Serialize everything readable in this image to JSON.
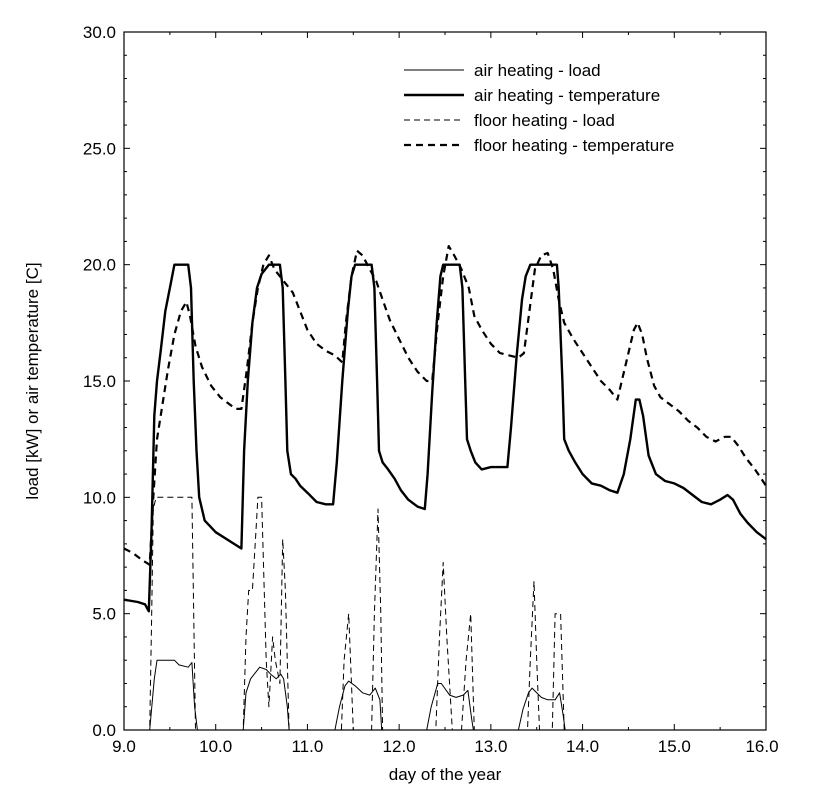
{
  "chart_data": {
    "type": "line",
    "title": "",
    "xlabel": "day of the year",
    "ylabel": "load [kW] or air temperature [C]",
    "xlim": [
      9.0,
      16.0
    ],
    "ylim": [
      0.0,
      30.0
    ],
    "xticks": [
      "9.0",
      "10.0",
      "11.0",
      "12.0",
      "13.0",
      "14.0",
      "15.0",
      "16.0"
    ],
    "yticks": [
      "0.0",
      "5.0",
      "10.0",
      "15.0",
      "20.0",
      "25.0",
      "30.0"
    ],
    "legend_position": "top-right",
    "series": [
      {
        "name": "air heating - load",
        "style": "thin-solid",
        "points": [
          [
            9.0,
            0
          ],
          [
            9.28,
            0
          ],
          [
            9.33,
            2.2
          ],
          [
            9.36,
            3.0
          ],
          [
            9.55,
            3.0
          ],
          [
            9.6,
            2.8
          ],
          [
            9.7,
            2.7
          ],
          [
            9.74,
            2.9
          ],
          [
            9.77,
            1.0
          ],
          [
            9.8,
            0
          ],
          [
            10.3,
            0
          ],
          [
            10.33,
            1.6
          ],
          [
            10.38,
            2.2
          ],
          [
            10.48,
            2.7
          ],
          [
            10.55,
            2.6
          ],
          [
            10.6,
            2.4
          ],
          [
            10.66,
            2.2
          ],
          [
            10.71,
            2.4
          ],
          [
            10.74,
            2.2
          ],
          [
            10.78,
            1.0
          ],
          [
            10.8,
            0
          ],
          [
            11.3,
            0
          ],
          [
            11.35,
            1.0
          ],
          [
            11.41,
            1.9
          ],
          [
            11.45,
            2.1
          ],
          [
            11.52,
            1.9
          ],
          [
            11.6,
            1.6
          ],
          [
            11.68,
            1.5
          ],
          [
            11.74,
            1.8
          ],
          [
            11.79,
            1.3
          ],
          [
            11.81,
            0
          ],
          [
            12.3,
            0
          ],
          [
            12.35,
            1.0
          ],
          [
            12.42,
            2.0
          ],
          [
            12.46,
            2.0
          ],
          [
            12.55,
            1.5
          ],
          [
            12.62,
            1.4
          ],
          [
            12.7,
            1.5
          ],
          [
            12.75,
            1.7
          ],
          [
            12.79,
            0.5
          ],
          [
            12.81,
            0
          ],
          [
            13.3,
            0
          ],
          [
            13.35,
            0.9
          ],
          [
            13.41,
            1.6
          ],
          [
            13.45,
            1.8
          ],
          [
            13.55,
            1.4
          ],
          [
            13.62,
            1.3
          ],
          [
            13.7,
            1.3
          ],
          [
            13.75,
            1.6
          ],
          [
            13.79,
            0.6
          ],
          [
            13.81,
            0
          ],
          [
            14.0,
            0
          ],
          [
            16.0,
            0
          ]
        ]
      },
      {
        "name": "air heating - temperature",
        "style": "thick-solid",
        "points": [
          [
            9.0,
            5.6
          ],
          [
            9.15,
            5.5
          ],
          [
            9.23,
            5.4
          ],
          [
            9.27,
            5.1
          ],
          [
            9.3,
            8.5
          ],
          [
            9.33,
            13.5
          ],
          [
            9.36,
            15.0
          ],
          [
            9.4,
            16.3
          ],
          [
            9.45,
            18.0
          ],
          [
            9.5,
            19.0
          ],
          [
            9.55,
            20.0
          ],
          [
            9.7,
            20.0
          ],
          [
            9.73,
            19.0
          ],
          [
            9.76,
            15.0
          ],
          [
            9.79,
            12.0
          ],
          [
            9.82,
            10.0
          ],
          [
            9.88,
            9.0
          ],
          [
            10.0,
            8.5
          ],
          [
            10.2,
            8.0
          ],
          [
            10.28,
            7.8
          ],
          [
            10.31,
            12.0
          ],
          [
            10.35,
            15.0
          ],
          [
            10.4,
            17.5
          ],
          [
            10.45,
            19.0
          ],
          [
            10.5,
            19.6
          ],
          [
            10.58,
            20.0
          ],
          [
            10.7,
            20.0
          ],
          [
            10.73,
            19.0
          ],
          [
            10.76,
            15.0
          ],
          [
            10.78,
            12.0
          ],
          [
            10.82,
            11.0
          ],
          [
            10.87,
            10.8
          ],
          [
            10.92,
            10.5
          ],
          [
            11.0,
            10.2
          ],
          [
            11.1,
            9.8
          ],
          [
            11.2,
            9.7
          ],
          [
            11.28,
            9.7
          ],
          [
            11.32,
            11.5
          ],
          [
            11.38,
            15.0
          ],
          [
            11.44,
            18.0
          ],
          [
            11.48,
            19.5
          ],
          [
            11.52,
            20.0
          ],
          [
            11.7,
            20.0
          ],
          [
            11.73,
            19.0
          ],
          [
            11.76,
            15.0
          ],
          [
            11.78,
            12.0
          ],
          [
            11.82,
            11.5
          ],
          [
            11.88,
            11.2
          ],
          [
            11.95,
            10.8
          ],
          [
            12.02,
            10.3
          ],
          [
            12.1,
            9.9
          ],
          [
            12.2,
            9.6
          ],
          [
            12.28,
            9.5
          ],
          [
            12.31,
            11.0
          ],
          [
            12.36,
            14.5
          ],
          [
            12.41,
            17.5
          ],
          [
            12.45,
            19.5
          ],
          [
            12.48,
            20.0
          ],
          [
            12.66,
            20.0
          ],
          [
            12.69,
            19.0
          ],
          [
            12.72,
            15.0
          ],
          [
            12.74,
            12.5
          ],
          [
            12.78,
            12.0
          ],
          [
            12.83,
            11.5
          ],
          [
            12.9,
            11.2
          ],
          [
            13.0,
            11.3
          ],
          [
            13.18,
            11.3
          ],
          [
            13.22,
            13.0
          ],
          [
            13.28,
            16.0
          ],
          [
            13.34,
            18.5
          ],
          [
            13.38,
            19.5
          ],
          [
            13.43,
            20.0
          ],
          [
            13.72,
            20.0
          ],
          [
            13.74,
            19.0
          ],
          [
            13.78,
            15.0
          ],
          [
            13.8,
            12.5
          ],
          [
            13.85,
            12.0
          ],
          [
            13.92,
            11.5
          ],
          [
            14.0,
            11.0
          ],
          [
            14.1,
            10.6
          ],
          [
            14.2,
            10.5
          ],
          [
            14.3,
            10.3
          ],
          [
            14.38,
            10.2
          ],
          [
            14.45,
            11.0
          ],
          [
            14.52,
            12.5
          ],
          [
            14.58,
            14.2
          ],
          [
            14.62,
            14.2
          ],
          [
            14.66,
            13.5
          ],
          [
            14.72,
            11.8
          ],
          [
            14.8,
            11.0
          ],
          [
            14.9,
            10.7
          ],
          [
            15.0,
            10.6
          ],
          [
            15.1,
            10.4
          ],
          [
            15.2,
            10.1
          ],
          [
            15.3,
            9.8
          ],
          [
            15.4,
            9.7
          ],
          [
            15.5,
            9.9
          ],
          [
            15.58,
            10.1
          ],
          [
            15.64,
            9.9
          ],
          [
            15.72,
            9.3
          ],
          [
            15.8,
            8.9
          ],
          [
            15.9,
            8.5
          ],
          [
            16.0,
            8.2
          ]
        ]
      },
      {
        "name": "floor heating - load",
        "style": "thin-dashed",
        "points": [
          [
            9.0,
            0
          ],
          [
            9.28,
            0
          ],
          [
            9.3,
            4.5
          ],
          [
            9.32,
            9.5
          ],
          [
            9.35,
            10.0
          ],
          [
            9.74,
            10.0
          ],
          [
            9.76,
            5.0
          ],
          [
            9.78,
            0
          ],
          [
            10.3,
            0
          ],
          [
            10.33,
            4.0
          ],
          [
            10.36,
            6.0
          ],
          [
            10.4,
            6.0
          ],
          [
            10.43,
            8.0
          ],
          [
            10.46,
            10.0
          ],
          [
            10.5,
            10.0
          ],
          [
            10.55,
            3.0
          ],
          [
            10.58,
            1.0
          ],
          [
            10.62,
            4.0
          ],
          [
            10.65,
            3.0
          ],
          [
            10.7,
            2.0
          ],
          [
            10.73,
            8.2
          ],
          [
            10.76,
            6.0
          ],
          [
            10.8,
            0
          ],
          [
            11.3,
            0
          ],
          [
            11.37,
            0
          ],
          [
            11.4,
            3.0
          ],
          [
            11.45,
            5.0
          ],
          [
            11.5,
            0
          ],
          [
            11.7,
            0
          ],
          [
            11.73,
            5.0
          ],
          [
            11.77,
            9.5
          ],
          [
            11.8,
            5.0
          ],
          [
            11.82,
            0
          ],
          [
            12.4,
            0
          ],
          [
            12.44,
            4.0
          ],
          [
            12.48,
            7.2
          ],
          [
            12.52,
            4.0
          ],
          [
            12.58,
            0
          ],
          [
            12.68,
            0
          ],
          [
            12.73,
            3.0
          ],
          [
            12.78,
            5.0
          ],
          [
            12.82,
            0
          ],
          [
            13.4,
            0
          ],
          [
            13.43,
            3.0
          ],
          [
            13.47,
            6.4
          ],
          [
            13.5,
            3.0
          ],
          [
            13.53,
            0
          ],
          [
            13.67,
            0
          ],
          [
            13.7,
            5.0
          ],
          [
            13.76,
            5.0
          ],
          [
            13.8,
            0
          ],
          [
            14.0,
            0
          ],
          [
            16.0,
            0
          ]
        ]
      },
      {
        "name": "floor heating - temperature",
        "style": "thick-dashed",
        "points": [
          [
            9.0,
            7.8
          ],
          [
            9.1,
            7.6
          ],
          [
            9.2,
            7.3
          ],
          [
            9.28,
            7.1
          ],
          [
            9.32,
            10.0
          ],
          [
            9.36,
            12.5
          ],
          [
            9.42,
            14.0
          ],
          [
            9.48,
            15.5
          ],
          [
            9.55,
            17.0
          ],
          [
            9.62,
            18.0
          ],
          [
            9.68,
            18.4
          ],
          [
            9.72,
            17.8
          ],
          [
            9.78,
            16.5
          ],
          [
            9.85,
            15.6
          ],
          [
            9.95,
            14.8
          ],
          [
            10.05,
            14.3
          ],
          [
            10.15,
            14.0
          ],
          [
            10.22,
            13.8
          ],
          [
            10.28,
            13.8
          ],
          [
            10.34,
            15.5
          ],
          [
            10.4,
            17.5
          ],
          [
            10.46,
            19.0
          ],
          [
            10.52,
            20.0
          ],
          [
            10.58,
            20.4
          ],
          [
            10.64,
            19.8
          ],
          [
            10.7,
            19.5
          ],
          [
            10.76,
            19.2
          ],
          [
            10.84,
            18.8
          ],
          [
            10.92,
            18.0
          ],
          [
            11.0,
            17.2
          ],
          [
            11.1,
            16.6
          ],
          [
            11.2,
            16.3
          ],
          [
            11.3,
            16.1
          ],
          [
            11.38,
            15.8
          ],
          [
            11.42,
            17.5
          ],
          [
            11.48,
            19.5
          ],
          [
            11.54,
            20.6
          ],
          [
            11.6,
            20.4
          ],
          [
            11.68,
            19.8
          ],
          [
            11.75,
            19.3
          ],
          [
            11.82,
            18.5
          ],
          [
            11.9,
            17.6
          ],
          [
            12.0,
            16.8
          ],
          [
            12.1,
            16.0
          ],
          [
            12.2,
            15.4
          ],
          [
            12.3,
            15.0
          ],
          [
            12.36,
            15.0
          ],
          [
            12.42,
            17.5
          ],
          [
            12.48,
            19.5
          ],
          [
            12.54,
            20.8
          ],
          [
            12.6,
            20.4
          ],
          [
            12.68,
            19.8
          ],
          [
            12.76,
            19.0
          ],
          [
            12.82,
            17.8
          ],
          [
            12.9,
            17.2
          ],
          [
            13.0,
            16.6
          ],
          [
            13.1,
            16.2
          ],
          [
            13.2,
            16.1
          ],
          [
            13.3,
            16.0
          ],
          [
            13.36,
            16.2
          ],
          [
            13.42,
            18.0
          ],
          [
            13.48,
            19.8
          ],
          [
            13.55,
            20.4
          ],
          [
            13.62,
            20.5
          ],
          [
            13.68,
            19.8
          ],
          [
            13.74,
            18.5
          ],
          [
            13.8,
            17.5
          ],
          [
            13.9,
            16.8
          ],
          [
            14.0,
            16.2
          ],
          [
            14.1,
            15.6
          ],
          [
            14.2,
            15.0
          ],
          [
            14.3,
            14.6
          ],
          [
            14.38,
            14.2
          ],
          [
            14.44,
            15.2
          ],
          [
            14.5,
            16.2
          ],
          [
            14.56,
            17.2
          ],
          [
            14.6,
            17.5
          ],
          [
            14.65,
            17.0
          ],
          [
            14.7,
            16.0
          ],
          [
            14.78,
            14.8
          ],
          [
            14.85,
            14.3
          ],
          [
            14.95,
            14.0
          ],
          [
            15.05,
            13.7
          ],
          [
            15.15,
            13.3
          ],
          [
            15.25,
            13.0
          ],
          [
            15.35,
            12.6
          ],
          [
            15.45,
            12.4
          ],
          [
            15.55,
            12.6
          ],
          [
            15.62,
            12.6
          ],
          [
            15.7,
            12.2
          ],
          [
            15.78,
            11.7
          ],
          [
            15.88,
            11.2
          ],
          [
            16.0,
            10.5
          ]
        ]
      }
    ]
  }
}
